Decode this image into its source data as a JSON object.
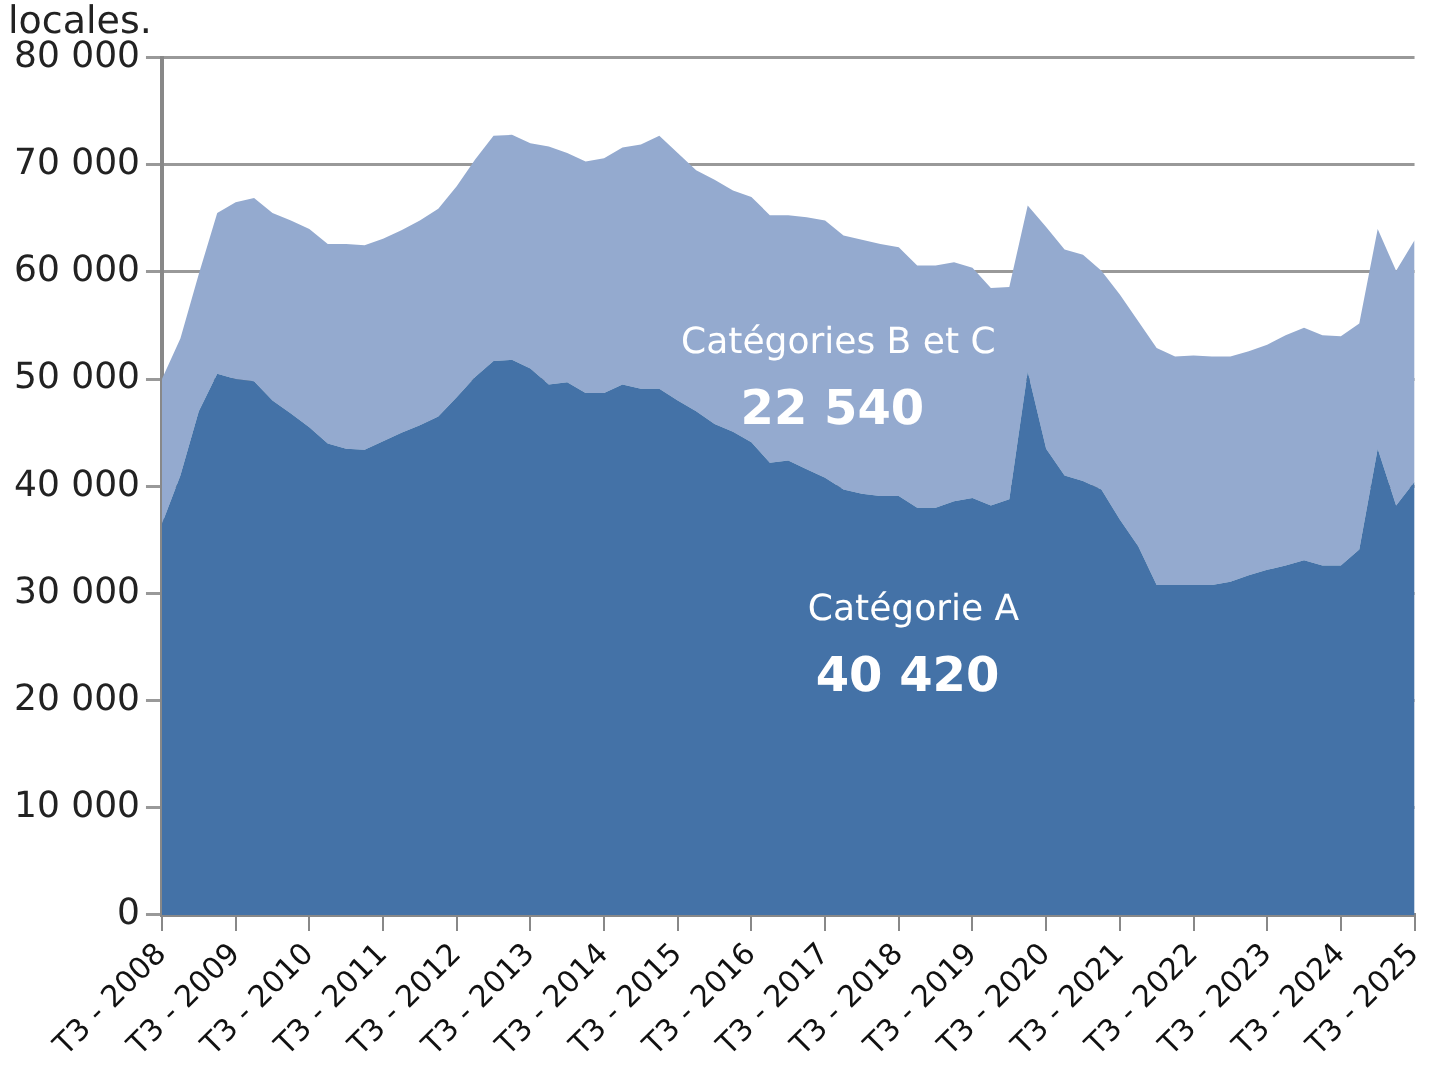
{
  "chart_data": {
    "type": "area",
    "title": "locales.",
    "stacked": true,
    "grid": "y",
    "legend": false,
    "marker": "none",
    "categories": [
      "T3 - 2008",
      null,
      null,
      null,
      "T3 - 2009",
      null,
      null,
      null,
      "T3 - 2010",
      null,
      null,
      null,
      "T3 - 2011",
      null,
      null,
      null,
      "T3 - 2012",
      null,
      null,
      null,
      "T3 - 2013",
      null,
      null,
      null,
      "T3 - 2014",
      null,
      null,
      null,
      "T3 - 2015",
      null,
      null,
      null,
      "T3 - 2016",
      null,
      null,
      null,
      "T3 - 2017",
      null,
      null,
      null,
      "T3 - 2018",
      null,
      null,
      null,
      "T3 - 2019",
      null,
      null,
      null,
      "T3 - 2020",
      null,
      null,
      null,
      "T3 - 2021",
      null,
      null,
      null,
      "T3 - 2022",
      null,
      null,
      null,
      "T3 - 2023",
      null,
      null,
      null,
      "T3 - 2024",
      null,
      null,
      null,
      "T3 - 2025"
    ],
    "series": [
      {
        "name": "Catégorie A",
        "color": "#4472a7",
        "values": [
          36500,
          41000,
          47000,
          50500,
          50000,
          49800,
          48000,
          46800,
          45500,
          44000,
          43500,
          43400,
          44200,
          45000,
          45700,
          46500,
          48300,
          50200,
          51700,
          51800,
          51000,
          49500,
          49700,
          48700,
          48700,
          49500,
          49100,
          49100,
          48000,
          47000,
          45800,
          45100,
          44100,
          42200,
          42400,
          41600,
          40800,
          39700,
          39300,
          39100,
          39100,
          38000,
          38000,
          38600,
          38900,
          38200,
          38800,
          50700,
          43500,
          41000,
          40500,
          39700,
          36900,
          34400,
          30800,
          30800,
          30800,
          30800,
          31100,
          31700,
          32200,
          32600,
          33100,
          32600,
          32600,
          34100,
          43500,
          38200,
          40420
        ]
      },
      {
        "name": "Catégories B et C",
        "color": "#94aacf",
        "values": [
          13500,
          12800,
          12800,
          15000,
          16500,
          17100,
          17500,
          18000,
          18500,
          18600,
          19100,
          19100,
          18900,
          18900,
          19100,
          19400,
          19700,
          20300,
          21000,
          21000,
          21000,
          22200,
          21400,
          21600,
          21900,
          22100,
          22800,
          23600,
          23100,
          22500,
          22800,
          22500,
          22900,
          23100,
          22900,
          23500,
          24000,
          23700,
          23700,
          23500,
          23200,
          22600,
          22600,
          22300,
          21500,
          20300,
          19800,
          15500,
          20700,
          21100,
          21100,
          20400,
          21000,
          21000,
          22100,
          21300,
          21400,
          21300,
          21000,
          20900,
          21000,
          21500,
          21700,
          21500,
          21400,
          21100,
          20500,
          21900,
          22540
        ]
      }
    ],
    "annotations": [
      "40 420",
      "22 540"
    ],
    "ylim": [
      0,
      80000
    ],
    "yticks": [
      {
        "value": 0,
        "label": "0"
      },
      {
        "value": 10000,
        "label": "10 000"
      },
      {
        "value": 20000,
        "label": "20 000"
      },
      {
        "value": 30000,
        "label": "30 000"
      },
      {
        "value": 40000,
        "label": "40 000"
      },
      {
        "value": 50000,
        "label": "50 000"
      },
      {
        "value": 60000,
        "label": "60 000"
      },
      {
        "value": 70000,
        "label": "70 000"
      },
      {
        "value": 80000,
        "label": "80 000"
      }
    ]
  }
}
